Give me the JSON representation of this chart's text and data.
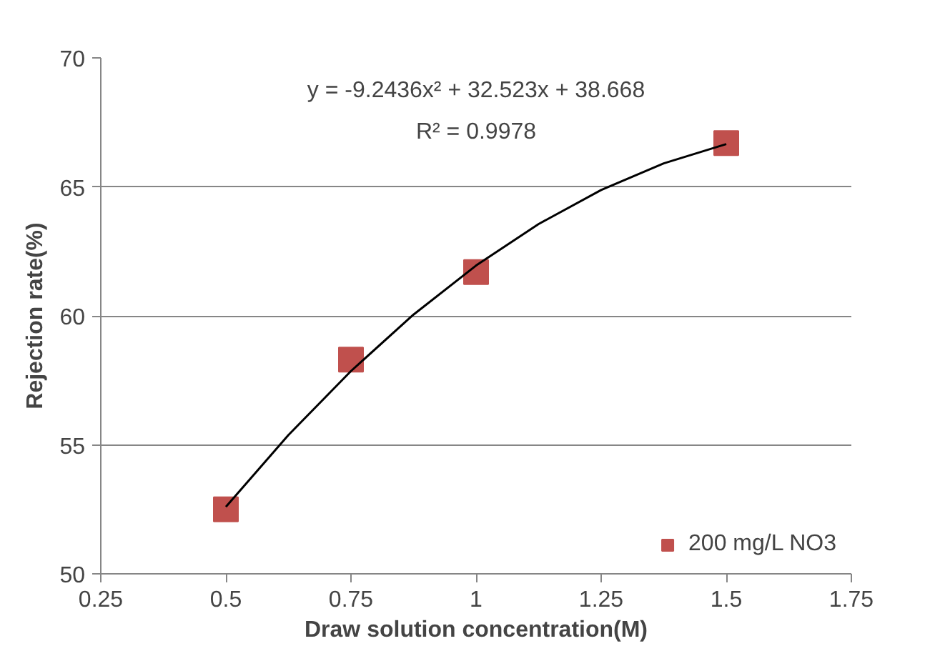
{
  "chart_data": {
    "type": "scatter",
    "xlabel": "Draw solution concentration(M)",
    "ylabel": "Rejection rate(%)",
    "annotations": [
      "y = -9.2436x² + 32.523x + 38.668",
      "R² = 0.9978"
    ],
    "xlim": [
      0.25,
      1.75
    ],
    "xticks": [
      0.25,
      0.5,
      0.75,
      1,
      1.25,
      1.5,
      1.75
    ],
    "ylim": [
      50,
      70
    ],
    "yticks": [
      50,
      55,
      60,
      65,
      70
    ],
    "grid": "y",
    "legend": "bottom right",
    "series": [
      {
        "name": "200 mg/L NO3",
        "marker": "square",
        "color": "#c0504d",
        "x": [
          0.5,
          0.75,
          1,
          1.5
        ],
        "values": [
          52.5,
          58.3,
          61.7,
          66.7
        ]
      },
      {
        "type": "line",
        "color": "#000000",
        "marker": "none",
        "line_style": "solid",
        "x": [
          0.5,
          0.625,
          0.75,
          0.875,
          1,
          1.125,
          1.25,
          1.375,
          1.5
        ],
        "values": [
          52.6,
          55.38,
          57.86,
          60.05,
          61.95,
          63.56,
          64.88,
          65.91,
          66.66
        ]
      }
    ]
  }
}
